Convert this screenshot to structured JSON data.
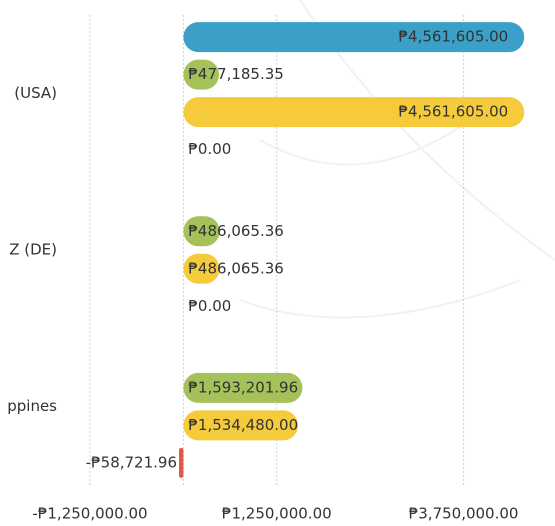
{
  "chart_data": {
    "type": "bar",
    "orientation": "horizontal",
    "categories": [
      "(USA)",
      "Z (DE)",
      "ppines"
    ],
    "series": [
      {
        "color": "#3aa0c8",
        "values": [
          4561605.0,
          null,
          null
        ],
        "value_labels": [
          "₱4,561,605.00",
          null,
          null
        ]
      },
      {
        "color": "#a4c15a",
        "values": [
          477185.35,
          486065.36,
          1593201.96
        ],
        "value_labels": [
          "₱477,185.35",
          "₱486,065.36",
          "₱1,593,201.96"
        ]
      },
      {
        "color": "#f5cb3c",
        "values": [
          4561605.0,
          486065.36,
          1534480.0
        ],
        "value_labels": [
          "₱4,561,605.00",
          "₱486,065.36",
          "₱1,534,480.00"
        ]
      },
      {
        "color": "#e05a4a",
        "values": [
          0,
          0,
          -58721.96
        ],
        "value_labels": [
          "₱0.00",
          "₱0.00",
          "-₱58,721.96"
        ]
      }
    ],
    "xlim": [
      -1250000,
      5000000
    ],
    "xticks": [
      {
        "value": -1250000,
        "label": "-₱1,250,000.00"
      },
      {
        "value": 1250000,
        "label": "₱1,250,000.00"
      },
      {
        "value": 3750000,
        "label": "₱3,750,000.00"
      }
    ],
    "grid": true
  }
}
